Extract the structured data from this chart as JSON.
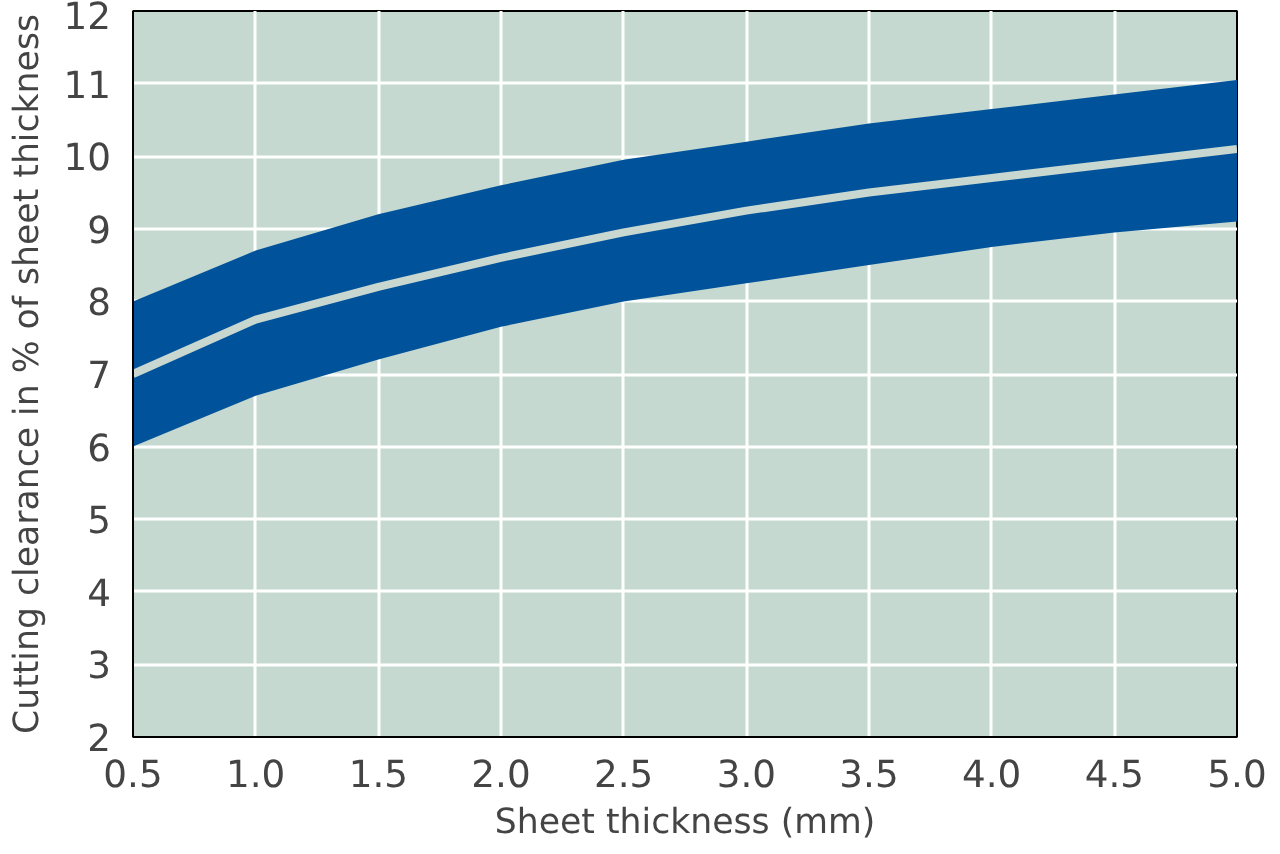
{
  "chart_data": {
    "type": "line",
    "xlabel": "Sheet thickness (mm)",
    "ylabel": "Cutting clearance in % of sheet thickness",
    "x": [
      0.5,
      1.0,
      1.5,
      2.0,
      2.5,
      3.0,
      3.5,
      4.0,
      4.5,
      5.0
    ],
    "series": [
      {
        "color": "#c8d8d0",
        "values": [
          7.0,
          7.75,
          8.2,
          8.6,
          8.95,
          9.25,
          9.5,
          9.7,
          9.9,
          10.1
        ],
        "lower": [
          6.0,
          6.7,
          7.2,
          7.65,
          8.0,
          8.25,
          8.5,
          8.75,
          8.95,
          9.1
        ],
        "upper": [
          8.0,
          8.7,
          9.2,
          9.6,
          9.95,
          10.2,
          10.45,
          10.65,
          10.85,
          11.05
        ]
      }
    ],
    "xlim": [
      0.5,
      5.0
    ],
    "ylim": [
      2,
      12
    ],
    "xticks": [
      {
        "value": 0.5,
        "label": "0.5"
      },
      {
        "value": 1.0,
        "label": "1.0"
      },
      {
        "value": 1.5,
        "label": "1.5"
      },
      {
        "value": 2.0,
        "label": "2.0"
      },
      {
        "value": 2.5,
        "label": "2.5"
      },
      {
        "value": 3.0,
        "label": "3.0"
      },
      {
        "value": 3.5,
        "label": "3.5"
      },
      {
        "value": 4.0,
        "label": "4.0"
      },
      {
        "value": 4.5,
        "label": "4.5"
      },
      {
        "value": 5.0,
        "label": "5.0"
      }
    ],
    "yticks": [
      2,
      3,
      4,
      5,
      6,
      7,
      8,
      9,
      10,
      11,
      12
    ],
    "grid": true,
    "marker": "none",
    "line_style": "solid"
  }
}
